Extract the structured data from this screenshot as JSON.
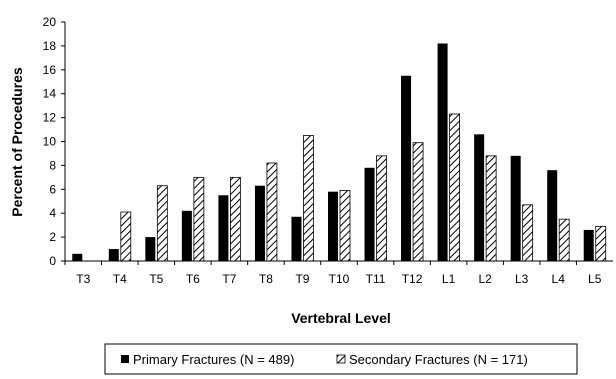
{
  "chart_data": {
    "type": "bar",
    "xlabel": "Vertebral Level",
    "ylabel": "Percent of Procedures",
    "ylim": [
      0,
      20
    ],
    "yticks": [
      "0",
      "2",
      "4",
      "6",
      "8",
      "10",
      "12",
      "14",
      "16",
      "18",
      "20"
    ],
    "grid": false,
    "legend_position": "bottom",
    "categories": [
      "T3",
      "T4",
      "T5",
      "T6",
      "T7",
      "T8",
      "T9",
      "T10",
      "T11",
      "T12",
      "L1",
      "L2",
      "L3",
      "L4",
      "L5"
    ],
    "series": [
      {
        "name": "Primary Fractures (N = 489)",
        "pattern": "solid",
        "color": "#000000",
        "values": [
          0.6,
          1.0,
          2.0,
          4.2,
          5.5,
          6.3,
          3.7,
          5.8,
          7.8,
          15.5,
          18.2,
          10.6,
          8.8,
          7.6,
          2.6
        ]
      },
      {
        "name": "Secondary Fractures (N = 171)",
        "pattern": "hatched",
        "color": "#000000",
        "values": [
          0,
          4.1,
          6.3,
          7.0,
          7.0,
          8.2,
          10.5,
          5.9,
          8.8,
          9.9,
          12.3,
          8.8,
          4.7,
          3.5,
          2.9
        ]
      }
    ]
  }
}
